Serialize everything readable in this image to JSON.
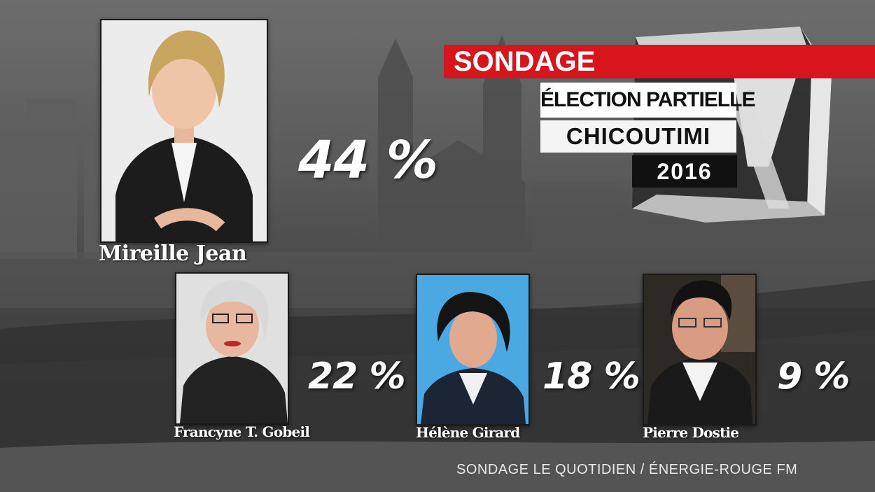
{
  "header": {
    "banner": "SONDAGE",
    "election_line": "ÉLECTION PARTIELLE",
    "city": "CHICOUTIMI",
    "year": "2016"
  },
  "candidates": [
    {
      "name": "Mireille Jean",
      "percent": "44 %"
    },
    {
      "name": "Francyne T. Gobeil",
      "percent": "22 %"
    },
    {
      "name": "Hélène Girard",
      "percent": "18 %"
    },
    {
      "name": "Pierre Dostie",
      "percent": "9 %"
    }
  ],
  "footer": {
    "source": "SONDAGE LE QUOTIDIEN / ÉNERGIE-ROUGE FM"
  },
  "colors": {
    "banner_red": "#d8141c",
    "text_white": "#ffffff",
    "tag_black": "#111111"
  }
}
